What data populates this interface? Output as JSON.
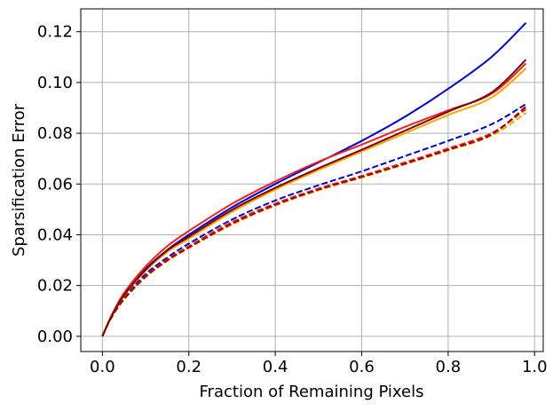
{
  "chart_data": {
    "type": "line",
    "title": "",
    "xlabel": "Fraction of Remaining Pixels",
    "ylabel": "Sparsification Error",
    "xlim": [
      -0.05,
      1.02
    ],
    "ylim": [
      -0.006,
      0.129
    ],
    "grid": true,
    "legend": "none",
    "x_ticks": [
      {
        "value": 0.0,
        "label": "0.0"
      },
      {
        "value": 0.2,
        "label": "0.2"
      },
      {
        "value": 0.4,
        "label": "0.4"
      },
      {
        "value": 0.6,
        "label": "0.6"
      },
      {
        "value": 0.8,
        "label": "0.8"
      },
      {
        "value": 1.0,
        "label": "1.0"
      }
    ],
    "y_ticks": [
      {
        "value": 0.0,
        "label": "0.00"
      },
      {
        "value": 0.02,
        "label": "0.02"
      },
      {
        "value": 0.04,
        "label": "0.04"
      },
      {
        "value": 0.06,
        "label": "0.06"
      },
      {
        "value": 0.08,
        "label": "0.08"
      },
      {
        "value": 0.1,
        "label": "0.10"
      },
      {
        "value": 0.12,
        "label": "0.12"
      }
    ],
    "x": [
      0.0,
      0.02,
      0.05,
      0.1,
      0.15,
      0.2,
      0.3,
      0.4,
      0.5,
      0.6,
      0.7,
      0.8,
      0.9,
      0.98
    ],
    "series": [
      {
        "name": "blue-solid",
        "color": "#0000cc",
        "dash": false,
        "values": [
          0.0,
          0.0075,
          0.016,
          0.0265,
          0.034,
          0.04,
          0.0508,
          0.06,
          0.0685,
          0.077,
          0.0865,
          0.0975,
          0.11,
          0.1235
        ]
      },
      {
        "name": "red-solid",
        "color": "#ee2222",
        "dash": false,
        "values": [
          0.0,
          0.0078,
          0.017,
          0.0275,
          0.0355,
          0.0415,
          0.0522,
          0.061,
          0.0688,
          0.0755,
          0.0825,
          0.089,
          0.0955,
          0.1075
        ]
      },
      {
        "name": "orange-solid",
        "color": "#ffa500",
        "dash": false,
        "values": [
          0.0,
          0.0075,
          0.016,
          0.0258,
          0.0332,
          0.0385,
          0.049,
          0.0578,
          0.0655,
          0.0728,
          0.08,
          0.0872,
          0.094,
          0.1055
        ]
      },
      {
        "name": "darkred-solid",
        "color": "#7a0000",
        "dash": false,
        "values": [
          0.0,
          0.0075,
          0.0162,
          0.0262,
          0.0338,
          0.0392,
          0.0498,
          0.0585,
          0.0662,
          0.0735,
          0.081,
          0.0885,
          0.096,
          0.109
        ]
      },
      {
        "name": "blue-dashed",
        "color": "#0000cc",
        "dash": true,
        "values": [
          0.0,
          0.0073,
          0.0152,
          0.0245,
          0.031,
          0.0365,
          0.046,
          0.0535,
          0.0595,
          0.065,
          0.071,
          0.077,
          0.0835,
          0.0915
        ]
      },
      {
        "name": "red-dashed",
        "color": "#ee2222",
        "dash": true,
        "values": [
          0.0,
          0.0072,
          0.0148,
          0.0238,
          0.0302,
          0.0355,
          0.045,
          0.0523,
          0.0582,
          0.0632,
          0.0685,
          0.074,
          0.08,
          0.0895
        ]
      },
      {
        "name": "orange-dashed",
        "color": "#ffa500",
        "dash": true,
        "values": [
          0.0,
          0.007,
          0.0145,
          0.0232,
          0.0296,
          0.0348,
          0.044,
          0.0515,
          0.0575,
          0.0625,
          0.0678,
          0.0732,
          0.079,
          0.088
        ]
      },
      {
        "name": "darkred-dashed",
        "color": "#9a0000",
        "dash": true,
        "values": [
          0.0,
          0.0071,
          0.0146,
          0.0235,
          0.0299,
          0.035,
          0.0444,
          0.0518,
          0.0578,
          0.0628,
          0.068,
          0.0735,
          0.0795,
          0.0905
        ]
      }
    ]
  }
}
